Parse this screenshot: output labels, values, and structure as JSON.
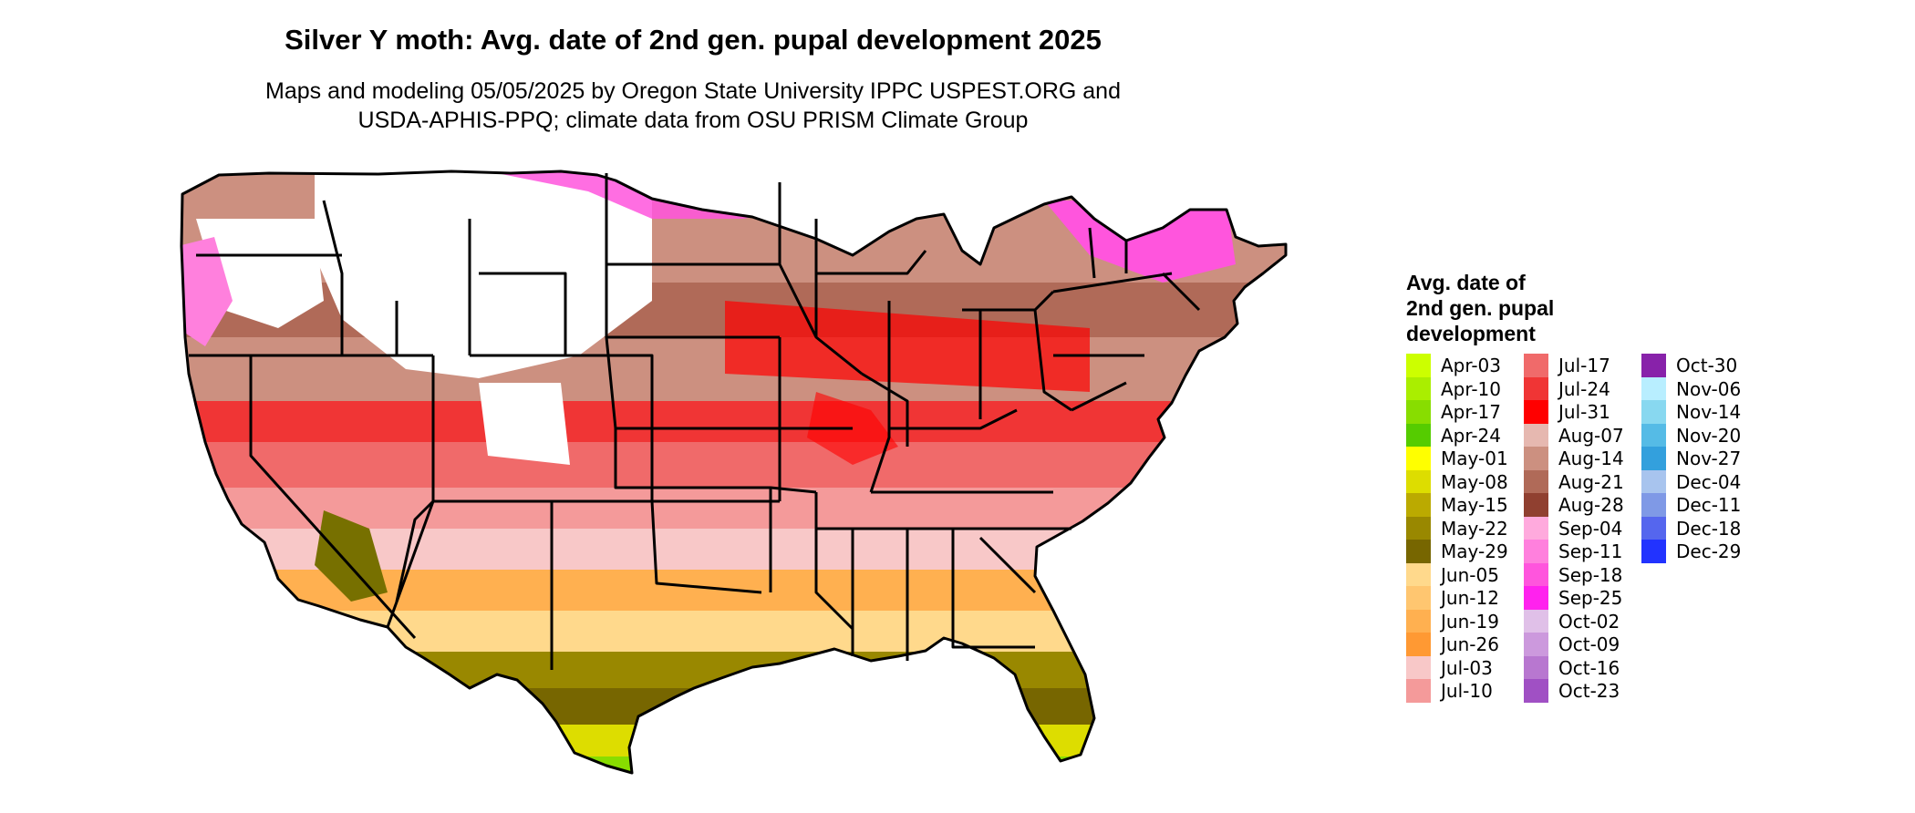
{
  "title": "Silver Y moth: Avg. date of 2nd gen. pupal development 2025",
  "subtitle": {
    "line1": "Maps and modeling 05/05/2025 by Oregon State University IPPC USPEST.ORG and",
    "line2": "USDA-APHIS-PPQ; climate data from OSU PRISM Climate Group"
  },
  "legend": {
    "title_lines": [
      "Avg. date of",
      "2nd gen. pupal",
      "development"
    ],
    "columns": [
      [
        {
          "label": "Apr-03",
          "color": "#ccff00"
        },
        {
          "label": "Apr-10",
          "color": "#aaee00"
        },
        {
          "label": "Apr-17",
          "color": "#88dd00"
        },
        {
          "label": "Apr-24",
          "color": "#55cc00"
        },
        {
          "label": "May-01",
          "color": "#ffff00"
        },
        {
          "label": "May-08",
          "color": "#dddd00"
        },
        {
          "label": "May-15",
          "color": "#bbaa00"
        },
        {
          "label": "May-22",
          "color": "#998800"
        },
        {
          "label": "May-29",
          "color": "#776600"
        },
        {
          "label": "Jun-05",
          "color": "#ffd98c"
        },
        {
          "label": "Jun-12",
          "color": "#ffc670"
        },
        {
          "label": "Jun-19",
          "color": "#ffb050"
        },
        {
          "label": "Jun-26",
          "color": "#ff9933"
        },
        {
          "label": "Jul-03",
          "color": "#f8c8c8"
        },
        {
          "label": "Jul-10",
          "color": "#f49a9a"
        }
      ],
      [
        {
          "label": "Jul-17",
          "color": "#f06a6a"
        },
        {
          "label": "Jul-24",
          "color": "#f03535"
        },
        {
          "label": "Jul-31",
          "color": "#ff0000"
        },
        {
          "label": "Aug-07",
          "color": "#e6b8b0"
        },
        {
          "label": "Aug-14",
          "color": "#cc9080"
        },
        {
          "label": "Aug-21",
          "color": "#b06a58"
        },
        {
          "label": "Aug-28",
          "color": "#904030"
        },
        {
          "label": "Sep-04",
          "color": "#ffaadd"
        },
        {
          "label": "Sep-11",
          "color": "#ff80dd"
        },
        {
          "label": "Sep-18",
          "color": "#ff55dd"
        },
        {
          "label": "Sep-25",
          "color": "#ff22ee"
        },
        {
          "label": "Oct-02",
          "color": "#e0c0e8"
        },
        {
          "label": "Oct-09",
          "color": "#cc99dd"
        },
        {
          "label": "Oct-16",
          "color": "#b877d0"
        },
        {
          "label": "Oct-23",
          "color": "#a050c4"
        }
      ],
      [
        {
          "label": "Oct-30",
          "color": "#8822aa"
        },
        {
          "label": "Nov-06",
          "color": "#b8eeff"
        },
        {
          "label": "Nov-14",
          "color": "#88d8f0"
        },
        {
          "label": "Nov-20",
          "color": "#55bbe6"
        },
        {
          "label": "Nov-27",
          "color": "#33a0dd"
        },
        {
          "label": "Dec-04",
          "color": "#a8c4ee"
        },
        {
          "label": "Dec-11",
          "color": "#7f99e6"
        },
        {
          "label": "Dec-18",
          "color": "#5566ee"
        },
        {
          "label": "Dec-29",
          "color": "#2233ff"
        }
      ]
    ]
  }
}
